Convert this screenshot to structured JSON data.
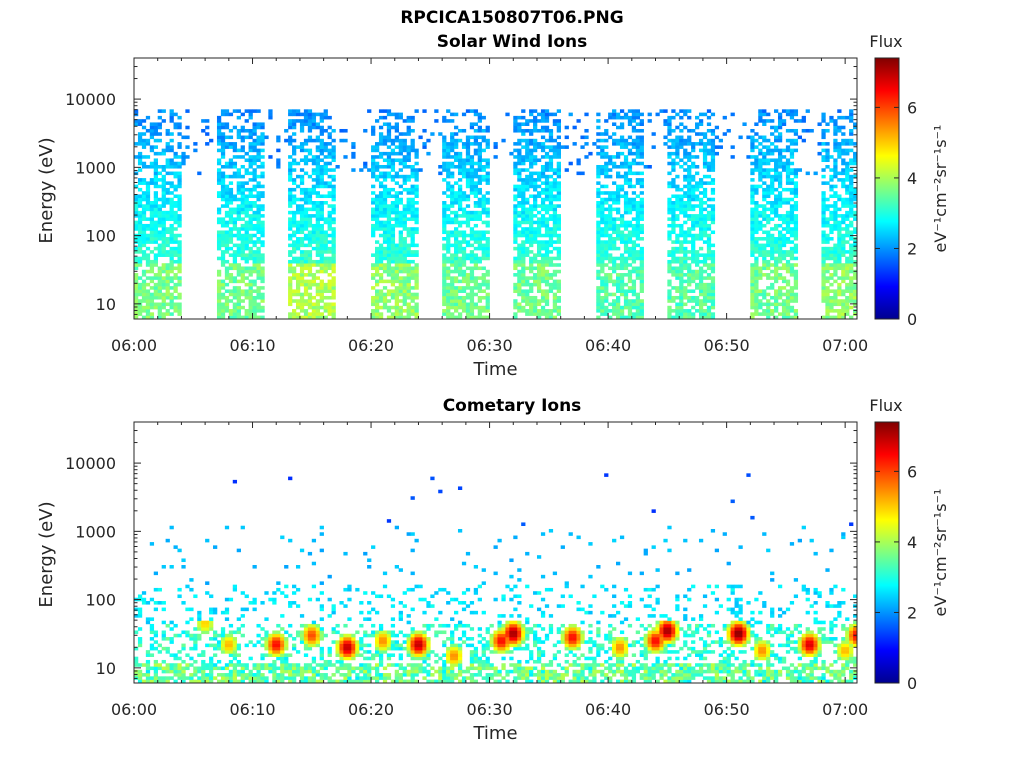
{
  "figure": {
    "filename": "RPCICA150807T06.PNG"
  },
  "colorbar": {
    "label": "Flux",
    "units_label": "eV⁻¹cm⁻²sr⁻¹s⁻¹",
    "ticks": [
      0,
      2,
      4,
      6
    ],
    "range": [
      0,
      7.4
    ],
    "colormap": "jet"
  },
  "chart_data": [
    {
      "type": "heatmap",
      "title": "Solar Wind Ions",
      "xlabel": "Time",
      "ylabel": "Energy (eV)",
      "x_ticks": [
        "06:00",
        "06:10",
        "06:20",
        "06:30",
        "06:40",
        "06:50",
        "07:00"
      ],
      "y_ticks": [
        10,
        100,
        1000,
        10000
      ],
      "y_tick_labels": [
        "10",
        "100",
        "1000",
        "10000"
      ],
      "y_scale": "log",
      "ylim": [
        6,
        40000
      ],
      "xlim_minutes": [
        0,
        61
      ],
      "grid": false,
      "value_label": "Flux",
      "description_bands": [
        {
          "start": "06:00",
          "end": "06:04",
          "peak_flux": 3.8
        },
        {
          "start": "06:07",
          "end": "06:11",
          "peak_flux": 3.8
        },
        {
          "start": "06:13",
          "end": "06:17",
          "peak_flux": 4.2
        },
        {
          "start": "06:20",
          "end": "06:24",
          "peak_flux": 4.0
        },
        {
          "start": "06:26",
          "end": "06:30",
          "peak_flux": 3.8
        },
        {
          "start": "06:32",
          "end": "06:36",
          "peak_flux": 3.8
        },
        {
          "start": "06:39",
          "end": "06:43",
          "peak_flux": 3.6
        },
        {
          "start": "06:45",
          "end": "06:49",
          "peak_flux": 3.6
        },
        {
          "start": "06:52",
          "end": "06:56",
          "peak_flux": 3.8
        },
        {
          "start": "06:58",
          "end": "07:01",
          "peak_flux": 4.0
        }
      ]
    },
    {
      "type": "heatmap",
      "title": "Cometary Ions",
      "xlabel": "Time",
      "ylabel": "Energy (eV)",
      "x_ticks": [
        "06:00",
        "06:10",
        "06:20",
        "06:30",
        "06:40",
        "06:50",
        "07:00"
      ],
      "y_ticks": [
        10,
        100,
        1000,
        10000
      ],
      "y_tick_labels": [
        "10",
        "100",
        "1000",
        "10000"
      ],
      "y_scale": "log",
      "ylim": [
        6,
        40000
      ],
      "xlim_minutes": [
        0,
        61
      ],
      "grid": false,
      "value_label": "Flux",
      "peaks": [
        {
          "time": "06:06",
          "energy_eV": 45,
          "flux": 5.0
        },
        {
          "time": "06:08",
          "energy_eV": 22,
          "flux": 5.2
        },
        {
          "time": "06:12",
          "energy_eV": 22,
          "flux": 6.5
        },
        {
          "time": "06:15",
          "energy_eV": 30,
          "flux": 6.0
        },
        {
          "time": "06:18",
          "energy_eV": 20,
          "flux": 7.0
        },
        {
          "time": "06:21",
          "energy_eV": 25,
          "flux": 5.5
        },
        {
          "time": "06:24",
          "energy_eV": 22,
          "flux": 7.0
        },
        {
          "time": "06:27",
          "energy_eV": 15,
          "flux": 5.5
        },
        {
          "time": "06:31",
          "energy_eV": 25,
          "flux": 6.5
        },
        {
          "time": "06:32",
          "energy_eV": 32,
          "flux": 7.2
        },
        {
          "time": "06:37",
          "energy_eV": 28,
          "flux": 6.5
        },
        {
          "time": "06:41",
          "energy_eV": 20,
          "flux": 5.5
        },
        {
          "time": "06:44",
          "energy_eV": 25,
          "flux": 6.5
        },
        {
          "time": "06:45",
          "energy_eV": 35,
          "flux": 7.2
        },
        {
          "time": "06:51",
          "energy_eV": 32,
          "flux": 7.4
        },
        {
          "time": "06:53",
          "energy_eV": 18,
          "flux": 5.5
        },
        {
          "time": "06:57",
          "energy_eV": 22,
          "flux": 6.8
        },
        {
          "time": "07:00",
          "energy_eV": 18,
          "flux": 5.2
        },
        {
          "time": "07:01",
          "energy_eV": 30,
          "flux": 6.5
        }
      ]
    }
  ]
}
